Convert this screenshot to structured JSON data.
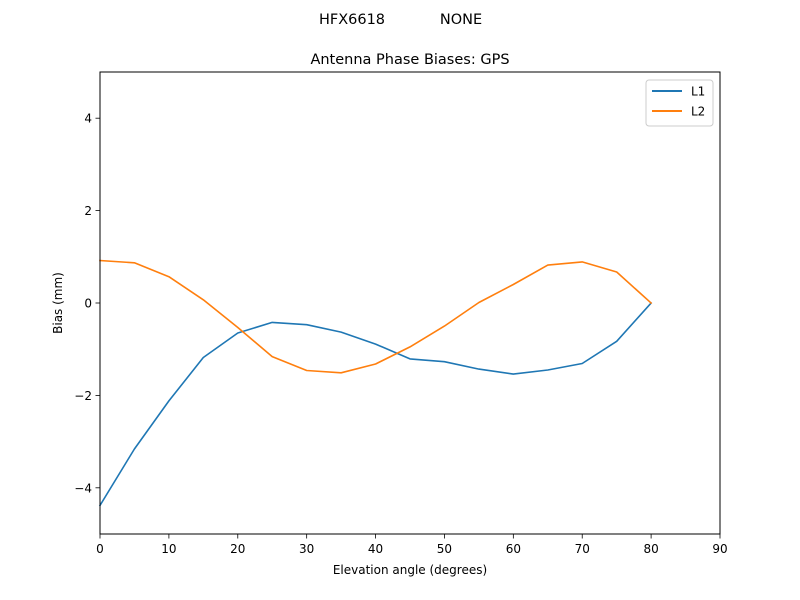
{
  "figure": {
    "suptitle_left": "HFX6618",
    "suptitle_right": "NONE"
  },
  "chart_data": {
    "type": "line",
    "title": "Antenna Phase Biases: GPS",
    "xlabel": "Elevation angle (degrees)",
    "ylabel": "Bias (mm)",
    "xlim": [
      0,
      90
    ],
    "ylim": [
      -5,
      5
    ],
    "xticks": [
      0,
      10,
      20,
      30,
      40,
      50,
      60,
      70,
      80,
      90
    ],
    "yticks": [
      -4,
      -2,
      0,
      2,
      4
    ],
    "xtick_labels": [
      "0",
      "10",
      "20",
      "30",
      "40",
      "50",
      "60",
      "70",
      "80",
      "90"
    ],
    "ytick_labels": [
      "−4",
      "−2",
      "0",
      "2",
      "4"
    ],
    "grid": false,
    "legend_position": "top-right",
    "x": [
      0,
      5,
      10,
      15,
      20,
      25,
      30,
      35,
      40,
      45,
      50,
      55,
      60,
      65,
      70,
      75,
      80
    ],
    "series": [
      {
        "name": "L1",
        "color": "#1f77b4",
        "values": [
          -4.38,
          -3.16,
          -2.12,
          -1.18,
          -0.65,
          -0.42,
          -0.47,
          -0.63,
          -0.89,
          -1.21,
          -1.27,
          -1.43,
          -1.54,
          -1.45,
          -1.31,
          -0.83,
          0.0
        ]
      },
      {
        "name": "L2",
        "color": "#ff7f0e",
        "values": [
          0.92,
          0.87,
          0.57,
          0.07,
          -0.53,
          -1.16,
          -1.46,
          -1.51,
          -1.32,
          -0.95,
          -0.5,
          0.01,
          0.4,
          0.82,
          0.89,
          0.67,
          0.0
        ]
      }
    ]
  }
}
